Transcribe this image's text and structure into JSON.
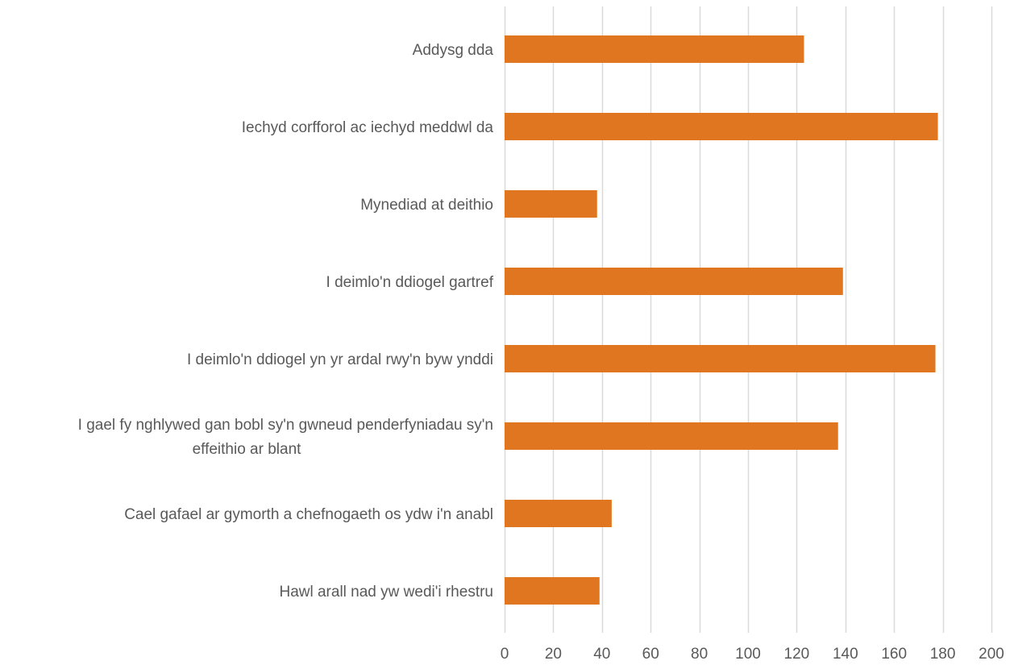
{
  "chart_data": {
    "type": "bar",
    "orientation": "horizontal",
    "categories": [
      "Addysg dda",
      "Iechyd corfforol ac iechyd meddwl da",
      "Mynediad at deithio",
      "I deimlo'n ddiogel gartref",
      "I deimlo'n ddiogel yn yr ardal rwy'n byw ynddi",
      "I gael fy nghlywed gan bobl sy'n gwneud penderfyniadau sy'n effeithio ar blant",
      "Cael gafael ar gymorth a chefnogaeth os ydw i'n anabl",
      "Hawl arall nad yw wedi'i rhestru"
    ],
    "category_lines": [
      [
        "Addysg dda"
      ],
      [
        "Iechyd corfforol ac iechyd meddwl da"
      ],
      [
        "Mynediad at deithio"
      ],
      [
        "I deimlo'n ddiogel gartref"
      ],
      [
        "I deimlo'n ddiogel yn yr ardal rwy'n byw ynddi"
      ],
      [
        "I gael fy nghlywed gan bobl sy'n gwneud penderfyniadau sy'n",
        "effeithio ar blant"
      ],
      [
        "Cael gafael ar gymorth a chefnogaeth os ydw i'n anabl"
      ],
      [
        "Hawl arall nad yw wedi'i rhestru"
      ]
    ],
    "values": [
      123,
      178,
      38,
      139,
      177,
      137,
      44,
      39
    ],
    "xlim": [
      0,
      200
    ],
    "xticks": [
      0,
      20,
      40,
      60,
      80,
      100,
      120,
      140,
      160,
      180,
      200
    ],
    "grid": true,
    "legend": "none",
    "title": "",
    "xlabel": "",
    "ylabel": ""
  },
  "colors": {
    "bar": "#E07720",
    "grid": "#d9d9d9",
    "text": "#595959"
  }
}
